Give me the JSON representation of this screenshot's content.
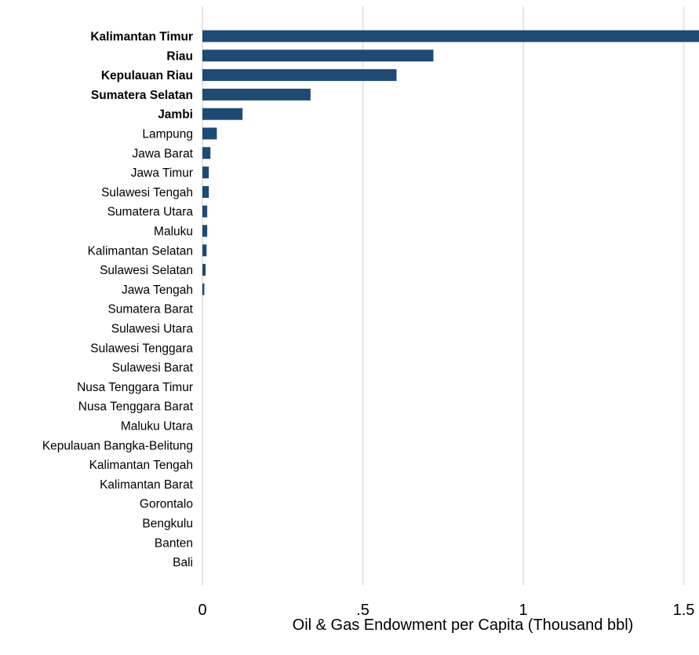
{
  "chart_data": {
    "type": "bar",
    "orientation": "horizontal",
    "xlabel": "Oil & Gas Endowment per Capita (Thousand bbl)",
    "ylabel": "",
    "xlim": [
      0,
      1.55
    ],
    "xticks": [
      {
        "value": 0,
        "label": "0"
      },
      {
        "value": 0.5,
        "label": ".5"
      },
      {
        "value": 1,
        "label": "1"
      },
      {
        "value": 1.5,
        "label": "1.5"
      }
    ],
    "grid": "vertical",
    "bar_color": "#1f4a73",
    "categories": [
      "Kalimantan Timur",
      "Riau",
      "Kepulauan Riau",
      "Sumatera Selatan",
      "Jambi",
      "Lampung",
      "Jawa Barat",
      "Jawa Timur",
      "Sulawesi Tengah",
      "Sumatera Utara",
      "Maluku",
      "Kalimantan Selatan",
      "Sulawesi Selatan",
      "Jawa Tengah",
      "Sumatera Barat",
      "Sulawesi Utara",
      "Sulawesi Tenggara",
      "Sulawesi Barat",
      "Nusa Tenggara Timur",
      "Nusa Tenggara Barat",
      "Maluku Utara",
      "Kepulauan Bangka-Belitung",
      "Kalimantan Tengah",
      "Kalimantan Barat",
      "Gorontalo",
      "Bengkulu",
      "Banten",
      "Bali"
    ],
    "bold_categories": [
      "Kalimantan Timur",
      "Riau",
      "Kepulauan Riau",
      "Sumatera Selatan",
      "Jambi"
    ],
    "values": [
      1.56,
      0.72,
      0.605,
      0.337,
      0.125,
      0.045,
      0.025,
      0.02,
      0.02,
      0.015,
      0.015,
      0.013,
      0.01,
      0.006,
      0,
      0,
      0,
      0,
      0,
      0,
      0,
      0,
      0,
      0,
      0,
      0,
      0,
      0
    ]
  }
}
